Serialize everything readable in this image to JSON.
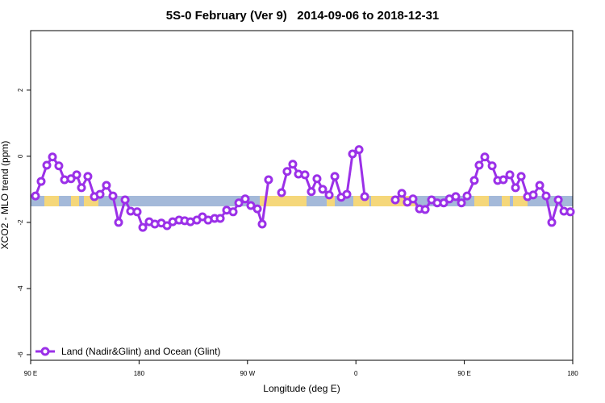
{
  "chart_data": {
    "type": "line",
    "title": "5S-0 February (Ver 9)   2014-09-06 to 2018-12-31",
    "x_label": "Longitude (deg E)",
    "y_label": "XCO2 - MLO trend (ppm)",
    "xlim": [
      90,
      540
    ],
    "xticks": [
      {
        "value": 90,
        "label": "90 E"
      },
      {
        "value": 180,
        "label": "180"
      },
      {
        "value": 270,
        "label": "90 W"
      },
      {
        "value": 360,
        "label": "0"
      },
      {
        "value": 450,
        "label": "90 E"
      },
      {
        "value": 540,
        "label": "180"
      }
    ],
    "ylim": [
      -6.17,
      3.8
    ],
    "yticks": [
      -6,
      -4,
      -2,
      0,
      2
    ],
    "legend": "bottom-left",
    "series": [
      {
        "name": "Land (Nadir&Glint) and Ocean (Glint)",
        "color": "#9b30e8",
        "x": [
          94.0,
          98.7,
          103.4,
          108.1,
          113.4,
          118.1,
          123.5,
          128.2,
          132.2,
          137.5,
          142.9,
          147.6,
          152.9,
          158.3,
          163.0,
          168.4,
          173.0,
          178.4,
          183.1,
          188.4,
          193.1,
          198.5,
          203.2,
          207.9,
          213.2,
          217.9,
          222.6,
          228.0,
          232.6,
          237.3,
          242.7,
          247.4,
          252.7,
          258.1,
          262.8,
          268.1,
          272.8,
          278.2,
          282.2,
          287.5,
          null,
          298.3,
          302.9,
          307.6,
          312.3,
          317.7,
          323.0,
          327.7,
          332.4,
          337.8,
          342.5,
          347.8,
          352.5,
          357.2,
          362.6,
          367.3,
          null,
          392.7,
          398.1,
          402.7,
          407.4,
          412.8,
          417.5,
          422.8,
          427.5,
          432.9,
          437.6,
          442.9,
          447.6,
          452.3,
          458.3,
          462.3,
          467.0,
          473.1,
          477.7,
          482.4,
          487.8,
          492.5,
          497.2,
          502.5,
          507.2,
          512.6,
          517.9,
          522.6,
          528.0,
          532.7,
          538.0
        ],
        "values": [
          -1.2,
          -0.76,
          -0.27,
          -0.02,
          -0.29,
          -0.71,
          -0.68,
          -0.56,
          -0.95,
          -0.61,
          -1.22,
          -1.15,
          -0.88,
          -1.2,
          -2.0,
          -1.32,
          -1.66,
          -1.68,
          -2.15,
          -1.98,
          -2.05,
          -2.02,
          -2.1,
          -1.98,
          -1.93,
          -1.95,
          -1.98,
          -1.93,
          -1.83,
          -1.93,
          -1.88,
          -1.88,
          -1.63,
          -1.68,
          -1.41,
          -1.29,
          -1.49,
          -1.59,
          -2.05,
          -0.71,
          null,
          -1.1,
          -0.46,
          -0.24,
          -0.54,
          -0.56,
          -1.07,
          -0.68,
          -1.0,
          -1.17,
          -0.61,
          -1.24,
          -1.15,
          0.07,
          0.2,
          -1.22,
          null,
          -1.32,
          -1.12,
          -1.39,
          -1.29,
          -1.59,
          -1.61,
          -1.32,
          -1.41,
          -1.41,
          -1.29,
          -1.22,
          -1.41,
          -1.2,
          -0.73,
          -0.27,
          -0.02,
          -0.29,
          -0.73,
          -0.71,
          -0.56,
          -0.95,
          -0.61,
          -1.22,
          -1.17,
          -0.88,
          -1.2,
          -2.0,
          -1.32,
          -1.66,
          -1.68
        ]
      }
    ]
  }
}
